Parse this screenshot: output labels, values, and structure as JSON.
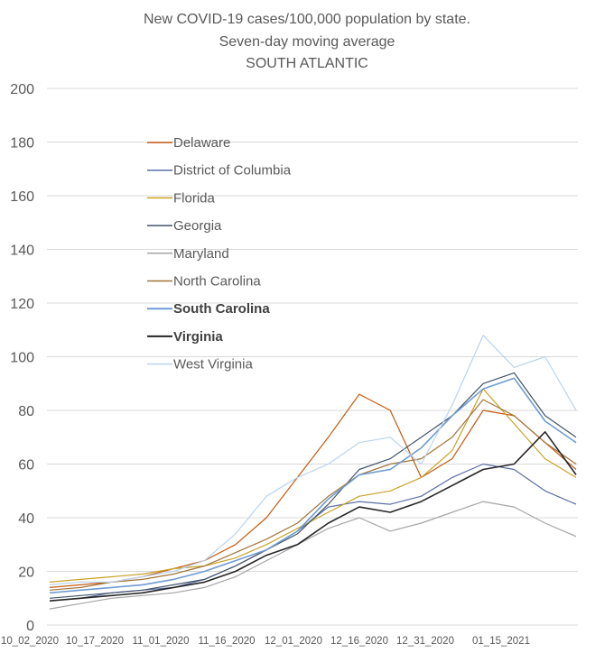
{
  "chart_data": {
    "type": "line",
    "title": "New COVID-19 cases/100,000 population by state.",
    "subtitle": "Seven-day moving average",
    "subtitle2": "SOUTH ATLANTIC",
    "xlabel": "",
    "ylabel": "",
    "ylim": [
      0,
      200
    ],
    "yticks": [
      0,
      20,
      40,
      60,
      80,
      100,
      120,
      140,
      160,
      180,
      200
    ],
    "xticks": [
      "10_02_2020",
      "10_17_2020",
      "11_01_2020",
      "11_16_2020",
      "12_01_2020",
      "12_16_2020",
      "12_31_2020",
      "01_15_2021"
    ],
    "grid": "horizontal",
    "legend_position": "upper-left inside",
    "x": [
      "10_02_2020",
      "10_09_2020",
      "10_17_2020",
      "10_24_2020",
      "11_01_2020",
      "11_08_2020",
      "11_16_2020",
      "11_23_2020",
      "12_01_2020",
      "12_08_2020",
      "12_16_2020",
      "12_23_2020",
      "12_31_2020",
      "01_04_2021",
      "01_08_2021",
      "01_15_2021",
      "01_22_2021",
      "01_27_2021"
    ],
    "series": [
      {
        "name": "Delaware",
        "color": "#c55a11",
        "bold": false,
        "values": [
          14,
          15,
          16,
          18,
          21,
          24,
          30,
          40,
          55,
          70,
          86,
          80,
          55,
          62,
          80,
          78,
          68,
          58
        ]
      },
      {
        "name": "District of Columbia",
        "color": "#5b6fa6",
        "bold": false,
        "values": [
          9,
          10,
          12,
          13,
          14,
          17,
          22,
          28,
          35,
          44,
          46,
          45,
          48,
          55,
          60,
          58,
          50,
          45
        ]
      },
      {
        "name": "Florida",
        "color": "#c9a227",
        "bold": false,
        "values": [
          16,
          17,
          18,
          19,
          21,
          22,
          25,
          30,
          36,
          42,
          48,
          50,
          55,
          65,
          88,
          75,
          62,
          55
        ]
      },
      {
        "name": "Georgia",
        "color": "#44546a",
        "bold": false,
        "values": [
          10,
          11,
          12,
          13,
          15,
          17,
          22,
          28,
          34,
          45,
          58,
          62,
          70,
          78,
          90,
          94,
          78,
          70
        ]
      },
      {
        "name": "Maryland",
        "color": "#a5a5a5",
        "bold": false,
        "values": [
          6,
          8,
          10,
          11,
          12,
          14,
          18,
          24,
          30,
          36,
          40,
          35,
          38,
          42,
          46,
          44,
          38,
          33
        ]
      },
      {
        "name": "North Carolina",
        "color": "#a0743b",
        "bold": false,
        "values": [
          13,
          14,
          16,
          17,
          19,
          22,
          27,
          32,
          38,
          48,
          56,
          60,
          62,
          70,
          84,
          78,
          68,
          60
        ]
      },
      {
        "name": "South Carolina",
        "color": "#6f9bd1",
        "bold": true,
        "values": [
          12,
          13,
          14,
          15,
          17,
          20,
          24,
          28,
          35,
          47,
          56,
          58,
          66,
          78,
          88,
          92,
          76,
          68
        ]
      },
      {
        "name": "Virginia",
        "color": "#262626",
        "bold": true,
        "values": [
          9,
          10,
          11,
          12,
          14,
          16,
          20,
          26,
          30,
          38,
          44,
          42,
          46,
          52,
          58,
          60,
          72,
          56
        ]
      },
      {
        "name": "West Virginia",
        "color": "#b9d4ee",
        "bold": false,
        "values": [
          15,
          16,
          16,
          18,
          20,
          24,
          34,
          48,
          55,
          60,
          68,
          70,
          60,
          82,
          108,
          96,
          100,
          80
        ]
      }
    ]
  }
}
